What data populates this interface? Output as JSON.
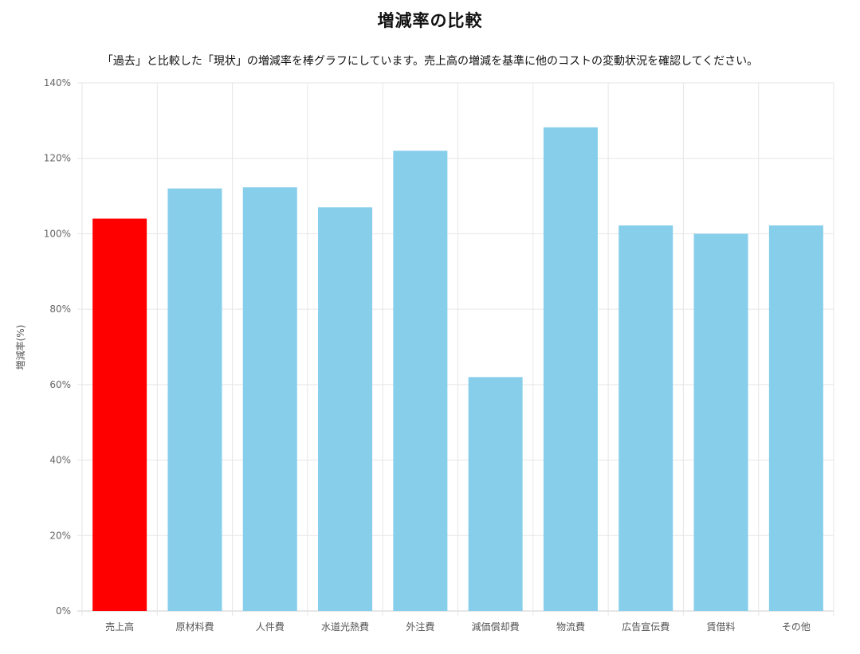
{
  "title": "増減率の比較",
  "subtitle": "「過去」と比較した「現状」の増減率を棒グラフにしています。売上高の増減を基準に他のコストの変動状況を確認してください。",
  "chart_data": {
    "type": "bar",
    "title": "増減率の比較",
    "ylabel": "増減率(%)",
    "xlabel": "",
    "ylim": [
      0,
      140
    ],
    "y_ticks": [
      0,
      20,
      40,
      60,
      80,
      100,
      120,
      140
    ],
    "y_tick_labels": [
      "0%",
      "20%",
      "40%",
      "60%",
      "80%",
      "100%",
      "120%",
      "140%"
    ],
    "categories": [
      "売上高",
      "原材料費",
      "人件費",
      "水道光熱費",
      "外注費",
      "減価償却費",
      "物流費",
      "広告宣伝費",
      "賃借料",
      "その他"
    ],
    "values": [
      104,
      112,
      112.3,
      107,
      122,
      62,
      128.2,
      102.2,
      100,
      102.2
    ],
    "highlight_category": "売上高",
    "colors": {
      "highlight": "#ff0000",
      "bar": "#87ceeb",
      "grid": "#e6e6e6"
    },
    "grid": true
  }
}
